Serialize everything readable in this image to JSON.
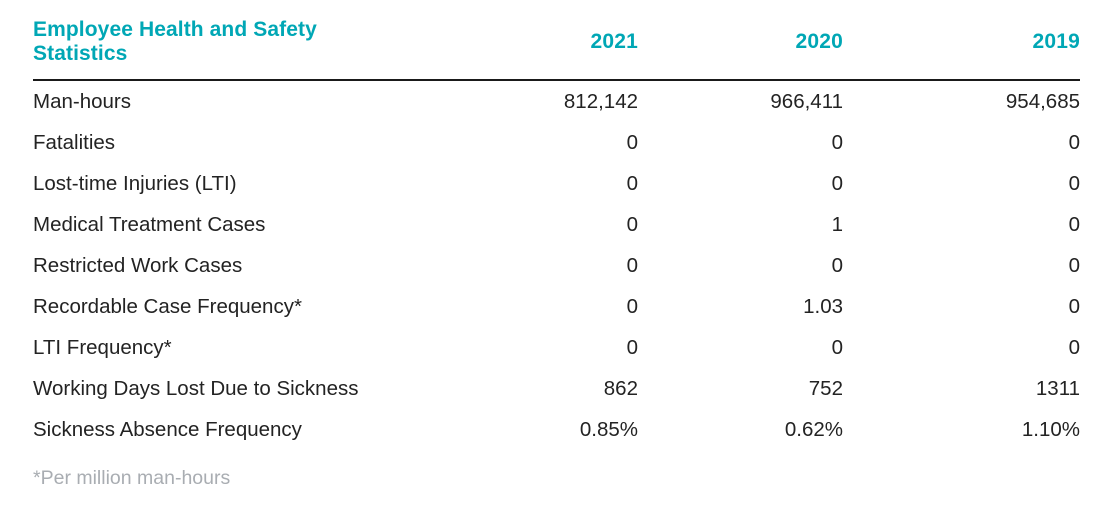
{
  "table": {
    "title": "Employee Health and Safety Statistics",
    "columns": [
      "2021",
      "2020",
      "2019"
    ],
    "rows": [
      {
        "label": "Man-hours",
        "values": [
          "812,142",
          "966,411",
          "954,685"
        ]
      },
      {
        "label": "Fatalities",
        "values": [
          "0",
          "0",
          "0"
        ]
      },
      {
        "label": "Lost-time Injuries (LTI)",
        "values": [
          "0",
          "0",
          "0"
        ]
      },
      {
        "label": "Medical Treatment Cases",
        "values": [
          "0",
          "1",
          "0"
        ]
      },
      {
        "label": "Restricted Work Cases",
        "values": [
          "0",
          "0",
          "0"
        ]
      },
      {
        "label": "Recordable Case Frequency*",
        "values": [
          "0",
          "1.03",
          "0"
        ]
      },
      {
        "label": "LTI Frequency*",
        "values": [
          "0",
          "0",
          "0"
        ]
      },
      {
        "label": "Working Days Lost Due to Sickness",
        "values": [
          "862",
          "752",
          "1311"
        ]
      },
      {
        "label": "Sickness Absence Frequency",
        "values": [
          "0.85%",
          "0.62%",
          "1.10%"
        ]
      }
    ],
    "footnote": "*Per million man-hours"
  },
  "colors": {
    "accent": "#00a7b5",
    "text": "#232323",
    "rule": "#1a1a1a",
    "footnote_gray": "#a9adb2"
  }
}
